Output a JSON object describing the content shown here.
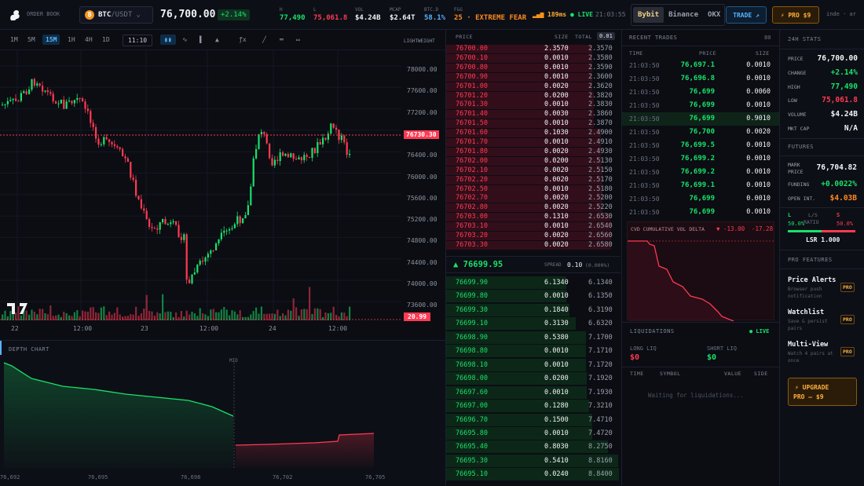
{
  "topbar": {
    "order_book_label": "ORDER BOOK",
    "pair_base": "BTC",
    "pair_sep": "/USDT",
    "coin_glyph": "₿",
    "pair_caret": "⌄",
    "price": "76,700.00",
    "change": "+2.14%",
    "stats": [
      {
        "label": "H",
        "value": "77,490",
        "color": "#19e26a"
      },
      {
        "label": "L",
        "value": "75,061.8",
        "color": "#ff3a52"
      },
      {
        "label": "VOL",
        "value": "$4.24B",
        "color": "#f1f3f7"
      },
      {
        "label": "MCAP",
        "value": "$2.64T",
        "color": "#f1f3f7"
      },
      {
        "label": "BTC.D",
        "value": "58.1%",
        "color": "#58b4ff"
      },
      {
        "label": "F&G",
        "value": "25 · EXTREME FEAR",
        "color": "#ff8a1f"
      }
    ],
    "latency": "189ms",
    "live_label": "● LIVE",
    "clock": "21:03:55",
    "exchanges": [
      "Bybit",
      "Binance",
      "OKX"
    ],
    "trade_button": "TRADE ↗",
    "pro_button": "⚡ PRO $9",
    "locale": "inde · ar"
  },
  "chart": {
    "timeframes": [
      "1M",
      "5M",
      "15M",
      "1H",
      "4H",
      "1D"
    ],
    "active_timeframe": "15M",
    "time_label": "11:10",
    "lightweight_label": "LIGHTWEIGHT",
    "price_ticks": [
      "78000.00",
      "77600.00",
      "77200.00",
      "76800.00",
      "76400.00",
      "76000.00",
      "75600.00",
      "75200.00",
      "74800.00",
      "74400.00",
      "74000.00",
      "73600.00"
    ],
    "current_price_tag": "76730.30",
    "volume_tag": "20.99",
    "time_ticks": [
      "22",
      "12:00",
      "23",
      "12:00",
      "24",
      "12:00"
    ]
  },
  "depth": {
    "title": "DEPTH CHART",
    "mid_label": "MID",
    "x_ticks": [
      "76,692",
      "76,695",
      "76,698",
      "76,702",
      "76,705"
    ]
  },
  "book": {
    "col_price": "PRICE",
    "col_size": "SIZE",
    "col_total": "TOTAL",
    "precision": "0.01",
    "asks": [
      [
        "76700.00",
        "2.3570",
        "2.3570"
      ],
      [
        "76700.10",
        "0.0010",
        "2.3580"
      ],
      [
        "76700.80",
        "0.0010",
        "2.3590"
      ],
      [
        "76700.90",
        "0.0010",
        "2.3600"
      ],
      [
        "76701.00",
        "0.0020",
        "2.3620"
      ],
      [
        "76701.20",
        "0.0200",
        "2.3820"
      ],
      [
        "76701.30",
        "0.0010",
        "2.3830"
      ],
      [
        "76701.40",
        "0.0030",
        "2.3860"
      ],
      [
        "76701.50",
        "0.0010",
        "2.3870"
      ],
      [
        "76701.60",
        "0.1030",
        "2.4900"
      ],
      [
        "76701.70",
        "0.0010",
        "2.4910"
      ],
      [
        "76701.80",
        "0.0020",
        "2.4930"
      ],
      [
        "76702.00",
        "0.0200",
        "2.5130"
      ],
      [
        "76702.10",
        "0.0020",
        "2.5150"
      ],
      [
        "76702.20",
        "0.0020",
        "2.5170"
      ],
      [
        "76702.50",
        "0.0010",
        "2.5180"
      ],
      [
        "76702.70",
        "0.0020",
        "2.5200"
      ],
      [
        "76702.80",
        "0.0020",
        "2.5220"
      ],
      [
        "76703.00",
        "0.1310",
        "2.6530"
      ],
      [
        "76703.10",
        "0.0010",
        "2.6540"
      ],
      [
        "76703.20",
        "0.0020",
        "2.6560"
      ],
      [
        "76703.30",
        "0.0020",
        "2.6580"
      ]
    ],
    "mid_price": "▲ 76699.95",
    "spread_label": "SPREAD",
    "spread_value": "0.10",
    "spread_pct": "(0.000%)",
    "bids": [
      [
        "76699.90",
        "6.1340",
        "6.1340"
      ],
      [
        "76699.80",
        "0.0010",
        "6.1350"
      ],
      [
        "76699.30",
        "0.1840",
        "6.3190"
      ],
      [
        "76699.10",
        "0.3130",
        "6.6320"
      ],
      [
        "76698.90",
        "0.5380",
        "7.1700"
      ],
      [
        "76698.80",
        "0.0010",
        "7.1710"
      ],
      [
        "76698.10",
        "0.0010",
        "7.1720"
      ],
      [
        "76698.00",
        "0.0200",
        "7.1920"
      ],
      [
        "76697.60",
        "0.0010",
        "7.1930"
      ],
      [
        "76697.00",
        "0.1280",
        "7.3210"
      ],
      [
        "76696.70",
        "0.1500",
        "7.4710"
      ],
      [
        "76695.80",
        "0.0010",
        "7.4720"
      ],
      [
        "76695.40",
        "0.8030",
        "8.2750"
      ],
      [
        "76695.30",
        "0.5410",
        "8.8160"
      ],
      [
        "76695.10",
        "0.0240",
        "8.8400"
      ]
    ]
  },
  "trades": {
    "title": "RECENT TRADES",
    "badge": "80",
    "col_time": "TIME",
    "col_price": "PRICE",
    "col_size": "SIZE",
    "rows": [
      [
        "21:03:50",
        "76,697.1",
        "0.0010"
      ],
      [
        "21:03:50",
        "76,696.8",
        "0.0010"
      ],
      [
        "21:03:50",
        "76,699",
        "0.0060"
      ],
      [
        "21:03:50",
        "76,699",
        "0.0010"
      ],
      [
        "21:03:50",
        "76,699",
        "0.9010"
      ],
      [
        "21:03:50",
        "76,700",
        "0.0020"
      ],
      [
        "21:03:50",
        "76,699.5",
        "0.0010"
      ],
      [
        "21:03:50",
        "76,699.2",
        "0.0010"
      ],
      [
        "21:03:50",
        "76,699.2",
        "0.0010"
      ],
      [
        "21:03:50",
        "76,699.1",
        "0.0010"
      ],
      [
        "21:03:50",
        "76,699",
        "0.0010"
      ],
      [
        "21:03:50",
        "76,699",
        "0.0010"
      ]
    ],
    "cvd_label": "CVD CUMULATIVE VOL DELTA",
    "cvd_value1": "▼ -13.00",
    "cvd_value2": "-17.28",
    "liq_title": "LIQUIDATIONS",
    "liq_live": "● LIVE",
    "long_liq_label": "LONG LIQ",
    "long_liq_value": "$0",
    "short_liq_label": "SHORT LIQ",
    "short_liq_value": "$0",
    "liq_cols": [
      "TIME",
      "SYMBOL",
      "VALUE",
      "SIDE"
    ],
    "liq_waiting": "Waiting for liquidations..."
  },
  "stats": {
    "title": "24H STATS",
    "rows": [
      {
        "k": "PRICE",
        "v": "76,700.00",
        "color": "#f1f3f7"
      },
      {
        "k": "CHANGE",
        "v": "+2.14%",
        "color": "#19e26a"
      },
      {
        "k": "HIGH",
        "v": "77,490",
        "color": "#19e26a"
      },
      {
        "k": "LOW",
        "v": "75,061.8",
        "color": "#ff3a52"
      },
      {
        "k": "VOLUME",
        "v": "$4.24B",
        "color": "#f1f3f7"
      },
      {
        "k": "MKT CAP",
        "v": "N/A",
        "color": "#f1f3f7"
      }
    ],
    "futures_title": "FUTURES",
    "mark_label_1": "MARK",
    "mark_label_2": "PRICE",
    "mark_value": "76,704.82",
    "funding_label": "FUNDING",
    "funding_value": "+0.0022%",
    "oi_label": "OPEN INT.",
    "oi_value": "$4.03B",
    "ls_l": "L",
    "ls_mid_1": "L/S",
    "ls_mid_2": "RATIO",
    "ls_s": "S",
    "ls_l_pct": "50.0%",
    "ls_s_pct": "50.0%",
    "ls_long_fraction": 0.5,
    "lsr": "LSR 1.000",
    "pro_title": "PRO FEATURES",
    "features": [
      {
        "name": "Price Alerts",
        "desc1": "Browser push",
        "desc2": "notification",
        "badge": "PRO"
      },
      {
        "name": "Watchlist",
        "desc1": "Save & persist",
        "desc2": "pairs",
        "badge": "PRO"
      },
      {
        "name": "Multi-View",
        "desc1": "Watch 4 pairs at",
        "desc2": "once",
        "badge": "PRO"
      }
    ],
    "upgrade_line1": "⚡ UPGRADE",
    "upgrade_line2": "PRO — $9"
  }
}
